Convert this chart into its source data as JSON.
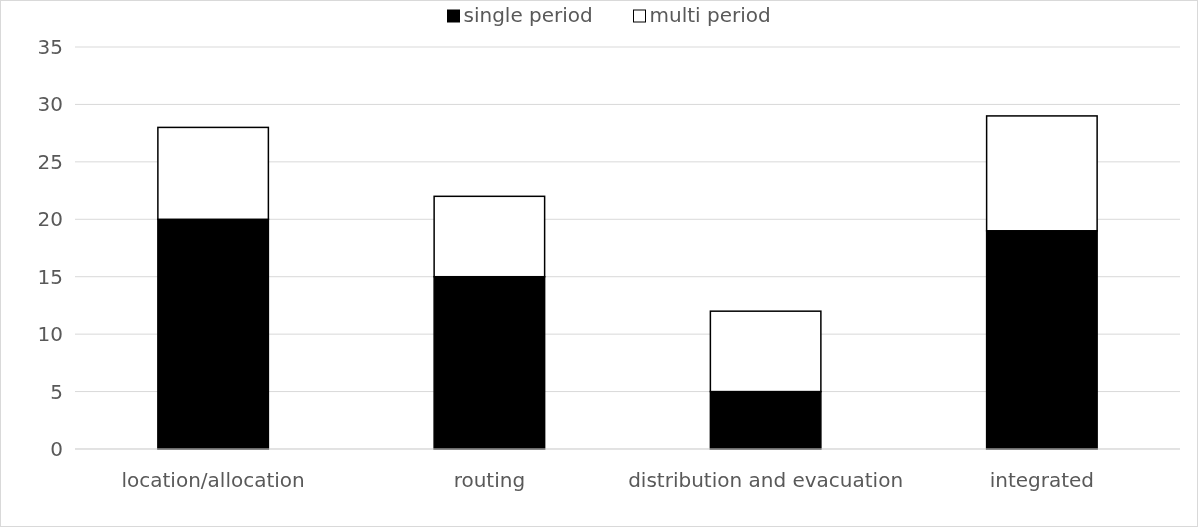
{
  "chart_data": {
    "type": "bar",
    "stacked": true,
    "categories": [
      "location/allocation",
      "routing",
      "distribution and evacuation",
      "integrated"
    ],
    "series": [
      {
        "name": "single period",
        "color": "#000000",
        "values": [
          20,
          15,
          5,
          19
        ]
      },
      {
        "name": "multi period",
        "color": "#ffffff",
        "values": [
          8,
          7,
          7,
          10
        ]
      }
    ],
    "ylim": [
      0,
      35
    ],
    "yticks": [
      0,
      5,
      10,
      15,
      20,
      25,
      30,
      35
    ],
    "grid": "y",
    "legend": "top"
  }
}
